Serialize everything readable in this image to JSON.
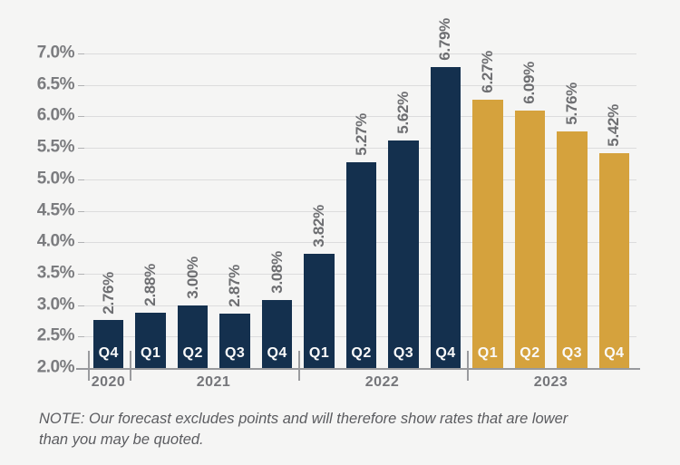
{
  "chart_data": {
    "type": "bar",
    "title": "",
    "xlabel": "",
    "ylabel": "",
    "unit": "%",
    "ylim": [
      2.0,
      7.0
    ],
    "grid": true,
    "legend": "none",
    "y_ticks": [
      {
        "value": 7.0,
        "label": "7.0%"
      },
      {
        "value": 6.5,
        "label": "6.5%"
      },
      {
        "value": 6.0,
        "label": "6.0%"
      },
      {
        "value": 5.5,
        "label": "5.5%"
      },
      {
        "value": 5.0,
        "label": "5.0%"
      },
      {
        "value": 4.5,
        "label": "4.5%"
      },
      {
        "value": 4.0,
        "label": "4.0%"
      },
      {
        "value": 3.5,
        "label": "3.5%"
      },
      {
        "value": 3.0,
        "label": "3.0%"
      },
      {
        "value": 2.5,
        "label": "2.5%"
      },
      {
        "value": 2.0,
        "label": "2.0%"
      }
    ],
    "series": [
      {
        "name": "actual",
        "color": "#14304e"
      },
      {
        "name": "forecast",
        "color": "#d5a23d"
      }
    ],
    "bars": [
      {
        "quarter": "Q4",
        "year": "2020",
        "value": 2.76,
        "label": "2.76%",
        "series": "actual"
      },
      {
        "quarter": "Q1",
        "year": "2021",
        "value": 2.88,
        "label": "2.88%",
        "series": "actual"
      },
      {
        "quarter": "Q2",
        "year": "2021",
        "value": 3.0,
        "label": "3.00%",
        "series": "actual"
      },
      {
        "quarter": "Q3",
        "year": "2021",
        "value": 2.87,
        "label": "2.87%",
        "series": "actual"
      },
      {
        "quarter": "Q4",
        "year": "2021",
        "value": 3.08,
        "label": "3.08%",
        "series": "actual"
      },
      {
        "quarter": "Q1",
        "year": "2022",
        "value": 3.82,
        "label": "3.82%",
        "series": "actual"
      },
      {
        "quarter": "Q2",
        "year": "2022",
        "value": 5.27,
        "label": "5.27%",
        "series": "actual"
      },
      {
        "quarter": "Q3",
        "year": "2022",
        "value": 5.62,
        "label": "5.62%",
        "series": "actual"
      },
      {
        "quarter": "Q4",
        "year": "2022",
        "value": 6.79,
        "label": "6.79%",
        "series": "actual"
      },
      {
        "quarter": "Q1",
        "year": "2023",
        "value": 6.27,
        "label": "6.27%",
        "series": "forecast"
      },
      {
        "quarter": "Q2",
        "year": "2023",
        "value": 6.09,
        "label": "6.09%",
        "series": "forecast"
      },
      {
        "quarter": "Q3",
        "year": "2023",
        "value": 5.76,
        "label": "5.76%",
        "series": "forecast"
      },
      {
        "quarter": "Q4",
        "year": "2023",
        "value": 5.42,
        "label": "5.42%",
        "series": "forecast"
      }
    ],
    "year_groups": [
      "2020",
      "2021",
      "2022",
      "2023"
    ]
  },
  "note": {
    "line1": "NOTE: Our forecast excludes points and will therefore show rates that are lower",
    "line2": "than you may be quoted."
  }
}
